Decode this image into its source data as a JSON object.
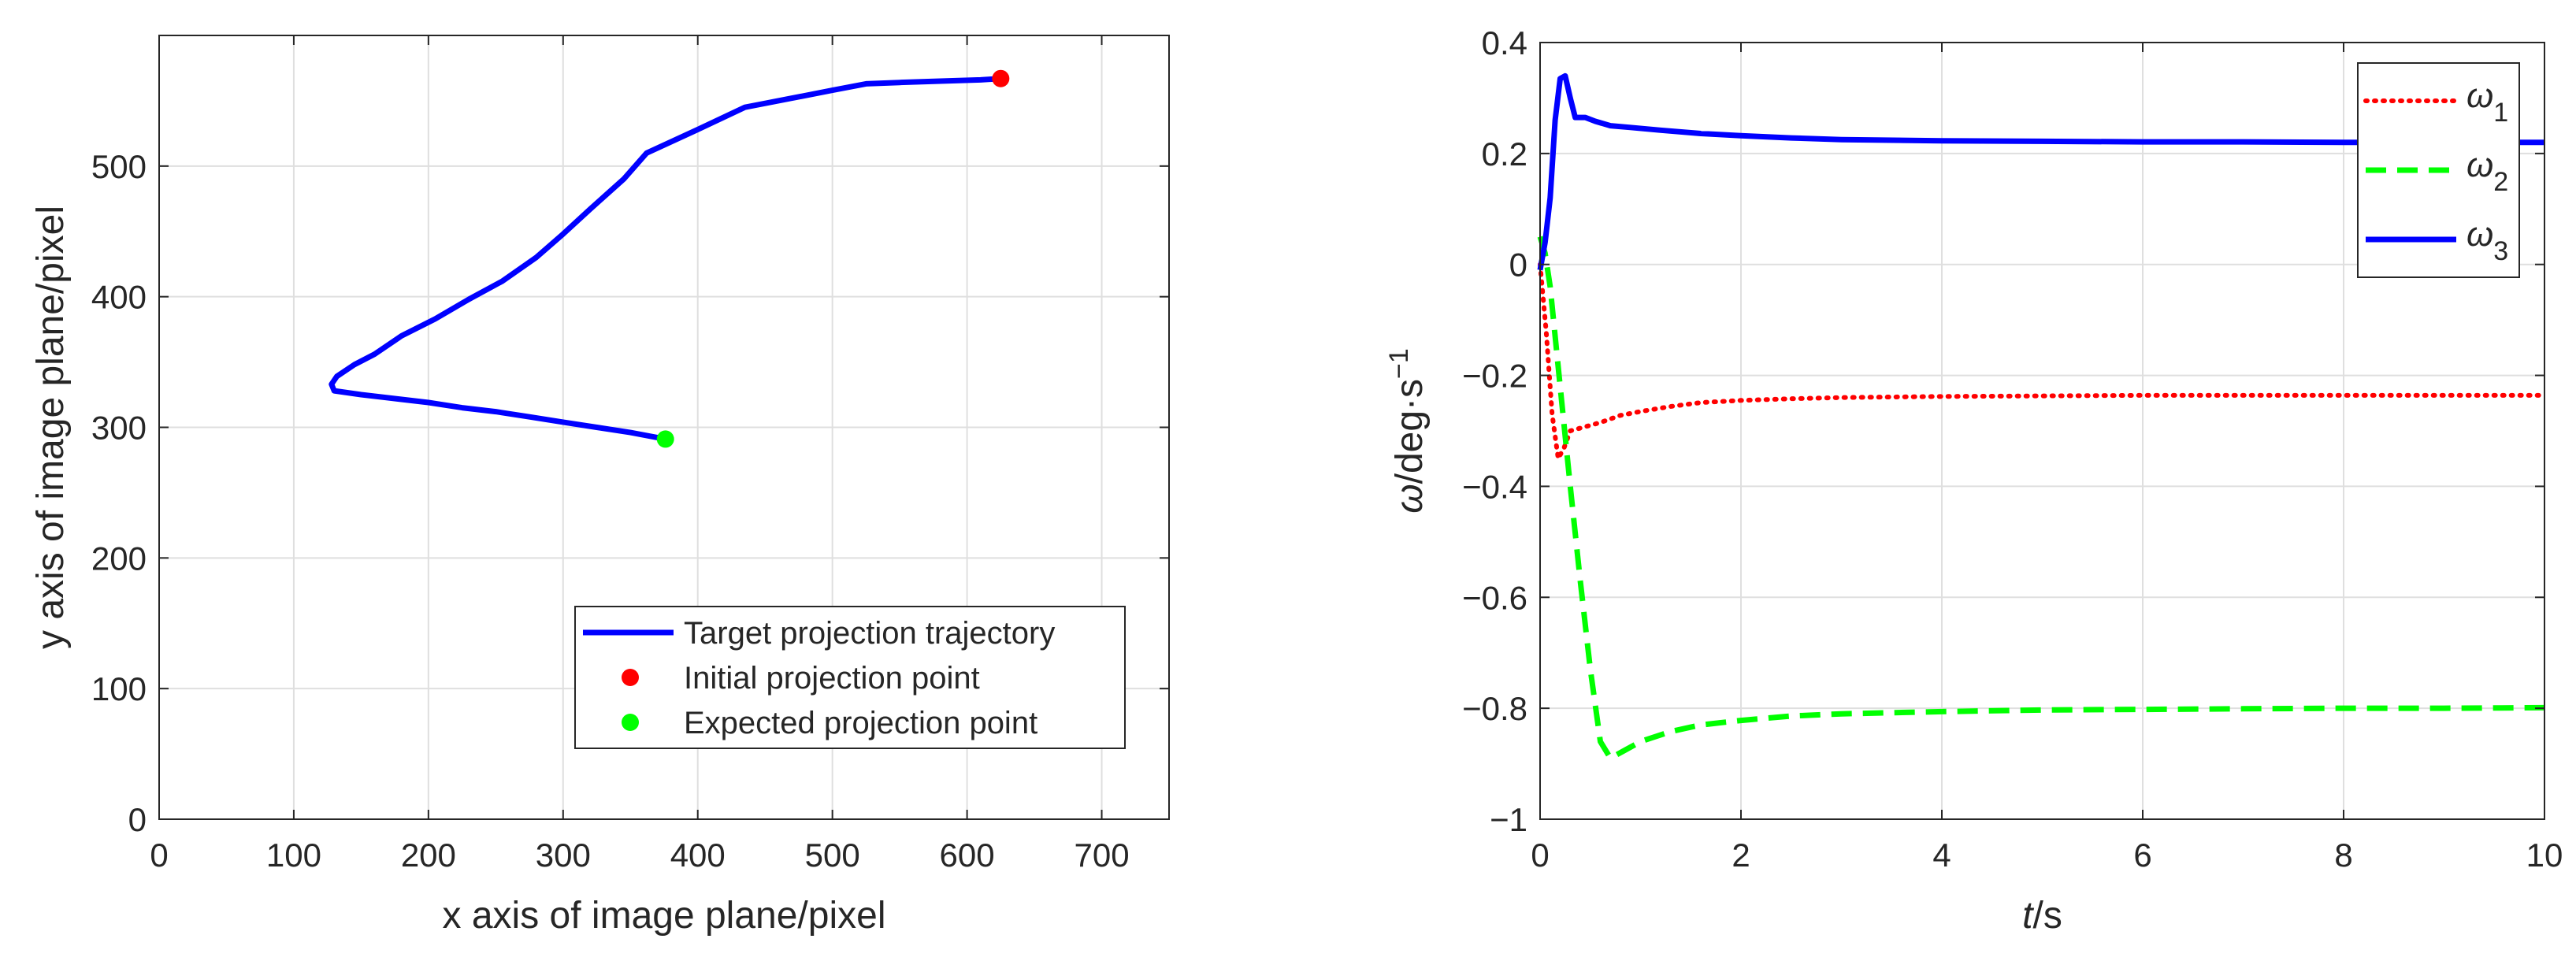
{
  "chart_data": [
    {
      "type": "line",
      "title": "",
      "xlabel": "x axis of image plane/pixel",
      "ylabel": "y axis of image plane/pixel",
      "xlim": [
        0,
        750
      ],
      "ylim": [
        0,
        600
      ],
      "xticks": [
        0,
        100,
        200,
        300,
        400,
        500,
        600,
        700
      ],
      "yticks": [
        0,
        100,
        200,
        300,
        400,
        500
      ],
      "grid": true,
      "legend_position": "bottom-right",
      "series": [
        {
          "name": "Target projection trajectory",
          "style": "line",
          "color": "#0000ff",
          "x": [
            625,
            610,
            580,
            550,
            525,
            500,
            470,
            435,
            400,
            362,
            345,
            320,
            300,
            280,
            255,
            230,
            205,
            180,
            160,
            145,
            132,
            128,
            130,
            150,
            175,
            200,
            225,
            250,
            275,
            300,
            325,
            350,
            376
          ],
          "y": [
            567,
            566,
            565,
            564,
            563,
            558,
            552,
            545,
            528,
            510,
            490,
            467,
            448,
            430,
            412,
            398,
            383,
            370,
            356,
            348,
            339,
            333,
            328,
            325,
            322,
            319,
            315,
            312,
            308,
            304,
            300,
            296,
            291
          ]
        },
        {
          "name": "Initial projection point",
          "style": "marker",
          "color": "#ff0000",
          "x": [
            625
          ],
          "y": [
            567
          ]
        },
        {
          "name": "Expected projection point",
          "style": "marker",
          "color": "#00ff00",
          "x": [
            376
          ],
          "y": [
            291
          ]
        }
      ]
    },
    {
      "type": "line",
      "title": "",
      "xlabel_italic": "t",
      "xlabel_rest": "/s",
      "ylabel_italic": "ω",
      "ylabel_rest": "/deg·s",
      "ylabel_sup": "−1",
      "xlim": [
        0,
        10
      ],
      "ylim": [
        -1,
        0.4
      ],
      "xticks": [
        0,
        2,
        4,
        6,
        8,
        10
      ],
      "yticks": [
        -1,
        -0.8,
        -0.6,
        -0.4,
        -0.2,
        0,
        0.2,
        0.4
      ],
      "ytick_labels": [
        "−1",
        "−0.8",
        "−0.6",
        "−0.4",
        "−0.2",
        "0",
        "0.2",
        "0.4"
      ],
      "grid": true,
      "legend_position": "top-right",
      "series": [
        {
          "name": "ω",
          "subscript": "1",
          "style": "dotted",
          "color": "#ff0000",
          "x": [
            0,
            0.06,
            0.12,
            0.18,
            0.24,
            0.3,
            0.4,
            0.6,
            0.8,
            1.0,
            1.3,
            1.6,
            2.0,
            2.5,
            3.0,
            4.0,
            5.0,
            6.0,
            7.0,
            8.0,
            9.0,
            10.0
          ],
          "y": [
            0,
            -0.12,
            -0.27,
            -0.35,
            -0.33,
            -0.3,
            -0.295,
            -0.285,
            -0.272,
            -0.265,
            -0.256,
            -0.249,
            -0.245,
            -0.242,
            -0.24,
            -0.238,
            -0.237,
            -0.236,
            -0.236,
            -0.236,
            -0.236,
            -0.236
          ]
        },
        {
          "name": "ω",
          "subscript": "2",
          "style": "dashed",
          "color": "#00ff00",
          "x": [
            0,
            0.05,
            0.1,
            0.2,
            0.3,
            0.4,
            0.5,
            0.6,
            0.7,
            0.85,
            1.0,
            1.3,
            1.6,
            2.0,
            2.5,
            3.0,
            4.0,
            5.0,
            6.0,
            7.0,
            8.0,
            9.0,
            10.0
          ],
          "y": [
            0.05,
            0.02,
            -0.04,
            -0.22,
            -0.4,
            -0.57,
            -0.73,
            -0.86,
            -0.89,
            -0.875,
            -0.86,
            -0.842,
            -0.83,
            -0.822,
            -0.814,
            -0.81,
            -0.806,
            -0.803,
            -0.802,
            -0.801,
            -0.8,
            -0.8,
            -0.799
          ]
        },
        {
          "name": "ω",
          "subscript": "3",
          "style": "solid",
          "color": "#0000ff",
          "x": [
            0,
            0.05,
            0.1,
            0.15,
            0.2,
            0.25,
            0.3,
            0.35,
            0.45,
            0.55,
            0.7,
            0.9,
            1.2,
            1.6,
            2.0,
            2.5,
            3.0,
            4.0,
            5.0,
            6.0,
            7.0,
            8.0,
            9.0,
            10.0
          ],
          "y": [
            -0.01,
            0.04,
            0.12,
            0.26,
            0.335,
            0.34,
            0.3,
            0.265,
            0.265,
            0.258,
            0.25,
            0.247,
            0.242,
            0.236,
            0.232,
            0.228,
            0.225,
            0.223,
            0.222,
            0.221,
            0.221,
            0.22,
            0.22,
            0.22
          ]
        }
      ]
    }
  ]
}
